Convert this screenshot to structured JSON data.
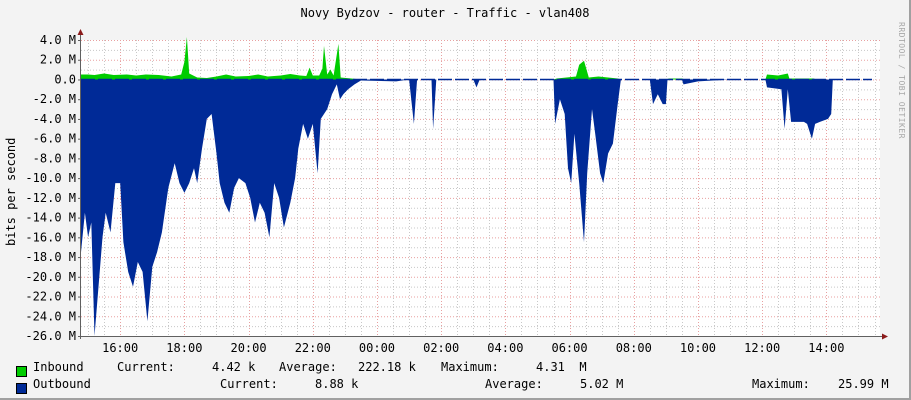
{
  "title": "Novy Bydzov - router - Traffic - vlan408",
  "watermark": "RRDTOOL / TOBI OETIKER",
  "colors": {
    "background": "#f3f3f3",
    "plot_background": "#ffffff",
    "inbound": "#00cc00",
    "outbound": "#002a97",
    "grid_major": "#e8a0a0",
    "grid_minor": "#c8c8c8",
    "axis": "#606060",
    "arrow": "#8b1a1a"
  },
  "legend": {
    "inbound": {
      "label": "Inbound",
      "current_label": "Current:",
      "current": "4.42 k",
      "average_label": "Average:",
      "average": "222.18 k",
      "maximum_label": "Maximum:",
      "maximum": "4.31  M"
    },
    "outbound": {
      "label": "Outbound",
      "current_label": "Current:",
      "current": "8.88 k",
      "average_label": "Average:",
      "average": "5.02 M",
      "maximum_label": "Maximum:",
      "maximum": "25.99 M"
    }
  },
  "chart_data": {
    "type": "area",
    "title": "Novy Bydzov - router - Traffic - vlan408",
    "xlabel": "",
    "ylabel": "bits per second",
    "ylim": [
      -26000000,
      4000000
    ],
    "yticks": [
      "4.0 M",
      "2.0 M",
      "0.0",
      "-2.0 M",
      "-4.0 M",
      "-6.0 M",
      "-8.0 M",
      "-10.0 M",
      "-12.0 M",
      "-14.0 M",
      "-16.0 M",
      "-18.0 M",
      "-20.0 M",
      "-22.0 M",
      "-24.0 M",
      "-26.0 M"
    ],
    "ytick_values": [
      4,
      2,
      0,
      -2,
      -4,
      -6,
      -8,
      -10,
      -12,
      -14,
      -16,
      -18,
      -20,
      -22,
      -24,
      -26
    ],
    "xticks": [
      "16:00",
      "18:00",
      "20:00",
      "22:00",
      "00:00",
      "02:00",
      "04:00",
      "06:00",
      "08:00",
      "10:00",
      "12:00",
      "14:00"
    ],
    "x_start_hour": 14.78,
    "grid": true,
    "legend_position": "bottom",
    "units": "M bits/s, x in hours since 14:47 (x values are hour offsets from 00:00 of first day)",
    "series": [
      {
        "name": "Inbound",
        "color": "#00cc00",
        "points": [
          [
            14.78,
            0.5
          ],
          [
            15.0,
            0.5
          ],
          [
            15.2,
            0.45
          ],
          [
            15.5,
            0.6
          ],
          [
            15.8,
            0.45
          ],
          [
            16.2,
            0.5
          ],
          [
            16.5,
            0.4
          ],
          [
            16.8,
            0.5
          ],
          [
            17.2,
            0.45
          ],
          [
            17.6,
            0.3
          ],
          [
            17.9,
            0.5
          ],
          [
            18.0,
            1.8
          ],
          [
            18.08,
            4.3
          ],
          [
            18.15,
            0.6
          ],
          [
            18.4,
            0.2
          ],
          [
            18.7,
            0.15
          ],
          [
            19.0,
            0.3
          ],
          [
            19.3,
            0.5
          ],
          [
            19.6,
            0.3
          ],
          [
            20.0,
            0.35
          ],
          [
            20.3,
            0.5
          ],
          [
            20.6,
            0.3
          ],
          [
            21.0,
            0.4
          ],
          [
            21.3,
            0.55
          ],
          [
            21.6,
            0.4
          ],
          [
            21.8,
            0.35
          ],
          [
            21.9,
            1.2
          ],
          [
            22.0,
            0.4
          ],
          [
            22.2,
            0.4
          ],
          [
            22.3,
            1.1
          ],
          [
            22.35,
            3.4
          ],
          [
            22.45,
            0.5
          ],
          [
            22.55,
            1.0
          ],
          [
            22.65,
            0.4
          ],
          [
            22.8,
            3.6
          ],
          [
            22.87,
            0.2
          ],
          [
            23.2,
            0.1
          ],
          [
            23.5,
            0
          ],
          [
            29.5,
            0
          ],
          [
            29.6,
            0.1
          ],
          [
            29.9,
            0.2
          ],
          [
            30.2,
            0.3
          ],
          [
            30.3,
            1.5
          ],
          [
            30.45,
            1.9
          ],
          [
            30.6,
            0.2
          ],
          [
            30.9,
            0.3
          ],
          [
            31.2,
            0.2
          ],
          [
            31.5,
            0.1
          ],
          [
            31.6,
            0
          ],
          [
            33.0,
            0
          ],
          [
            33.1,
            0.1
          ],
          [
            33.5,
            0.1
          ],
          [
            33.6,
            0
          ],
          [
            36.1,
            0
          ],
          [
            36.15,
            0.5
          ],
          [
            36.5,
            0.4
          ],
          [
            36.8,
            0.6
          ],
          [
            36.85,
            0.1
          ],
          [
            37.3,
            0.1
          ],
          [
            37.6,
            0.1
          ],
          [
            37.7,
            0
          ],
          [
            38.8,
            0
          ]
        ]
      },
      {
        "name": "Outbound",
        "color": "#002a97",
        "points": [
          [
            14.78,
            -17.5
          ],
          [
            14.9,
            -13.5
          ],
          [
            15.0,
            -16.0
          ],
          [
            15.1,
            -14.5
          ],
          [
            15.2,
            -26.0
          ],
          [
            15.3,
            -22.0
          ],
          [
            15.45,
            -16.0
          ],
          [
            15.55,
            -13.5
          ],
          [
            15.7,
            -15.5
          ],
          [
            15.85,
            -10.5
          ],
          [
            16.0,
            -10.5
          ],
          [
            16.1,
            -16.5
          ],
          [
            16.25,
            -19.5
          ],
          [
            16.4,
            -21.0
          ],
          [
            16.55,
            -18.5
          ],
          [
            16.7,
            -19.5
          ],
          [
            16.85,
            -24.5
          ],
          [
            17.0,
            -19.0
          ],
          [
            17.15,
            -17.5
          ],
          [
            17.3,
            -15.5
          ],
          [
            17.5,
            -11.0
          ],
          [
            17.7,
            -8.5
          ],
          [
            17.85,
            -10.5
          ],
          [
            18.0,
            -11.5
          ],
          [
            18.15,
            -10.5
          ],
          [
            18.3,
            -9.0
          ],
          [
            18.4,
            -10.5
          ],
          [
            18.55,
            -7.0
          ],
          [
            18.7,
            -4.0
          ],
          [
            18.85,
            -3.5
          ],
          [
            19.0,
            -7.5
          ],
          [
            19.1,
            -10.5
          ],
          [
            19.25,
            -12.5
          ],
          [
            19.4,
            -13.5
          ],
          [
            19.55,
            -11.0
          ],
          [
            19.7,
            -10.0
          ],
          [
            19.9,
            -10.5
          ],
          [
            20.05,
            -12.0
          ],
          [
            20.2,
            -14.5
          ],
          [
            20.35,
            -12.5
          ],
          [
            20.5,
            -13.5
          ],
          [
            20.65,
            -16.0
          ],
          [
            20.8,
            -10.5
          ],
          [
            20.95,
            -12.0
          ],
          [
            21.1,
            -15.0
          ],
          [
            21.3,
            -12.5
          ],
          [
            21.45,
            -10.0
          ],
          [
            21.55,
            -7.0
          ],
          [
            21.7,
            -4.5
          ],
          [
            21.85,
            -6.0
          ],
          [
            22.0,
            -4.5
          ],
          [
            22.15,
            -9.5
          ],
          [
            22.25,
            -4.0
          ],
          [
            22.45,
            -3.0
          ],
          [
            22.6,
            -1.5
          ],
          [
            22.75,
            -0.5
          ],
          [
            22.85,
            -2.0
          ],
          [
            22.95,
            -1.5
          ],
          [
            23.1,
            -1.0
          ],
          [
            23.3,
            -0.5
          ],
          [
            23.5,
            -0.1
          ],
          [
            24.6,
            -0.2
          ],
          [
            25.0,
            0
          ],
          [
            25.15,
            -4.5
          ],
          [
            25.25,
            0
          ],
          [
            25.7,
            0
          ],
          [
            25.75,
            -5.0
          ],
          [
            25.85,
            0
          ],
          [
            27.0,
            0
          ],
          [
            27.1,
            -0.8
          ],
          [
            27.2,
            0
          ],
          [
            29.5,
            0
          ],
          [
            29.55,
            -4.5
          ],
          [
            29.7,
            -2.0
          ],
          [
            29.85,
            -3.5
          ],
          [
            29.95,
            -9.0
          ],
          [
            30.05,
            -10.5
          ],
          [
            30.15,
            -5.5
          ],
          [
            30.3,
            -10.5
          ],
          [
            30.45,
            -16.5
          ],
          [
            30.55,
            -9.5
          ],
          [
            30.7,
            -3.0
          ],
          [
            30.8,
            -5.5
          ],
          [
            30.95,
            -9.5
          ],
          [
            31.05,
            -10.5
          ],
          [
            31.2,
            -7.5
          ],
          [
            31.35,
            -6.5
          ],
          [
            31.5,
            -2.5
          ],
          [
            31.6,
            0
          ],
          [
            32.5,
            0
          ],
          [
            32.6,
            -2.5
          ],
          [
            32.75,
            -1.5
          ],
          [
            32.9,
            -2.5
          ],
          [
            33.0,
            -2.5
          ],
          [
            33.05,
            0
          ],
          [
            33.5,
            0
          ],
          [
            33.55,
            -0.5
          ],
          [
            34.0,
            -0.2
          ],
          [
            35.0,
            0
          ],
          [
            36.1,
            0
          ],
          [
            36.15,
            -0.8
          ],
          [
            36.6,
            -1.0
          ],
          [
            36.7,
            -5.0
          ],
          [
            36.8,
            -1.0
          ],
          [
            36.9,
            -4.3
          ],
          [
            37.3,
            -4.3
          ],
          [
            37.4,
            -4.5
          ],
          [
            37.55,
            -6.0
          ],
          [
            37.65,
            -4.5
          ],
          [
            37.8,
            -4.3
          ],
          [
            38.05,
            -4.0
          ],
          [
            38.15,
            -3.5
          ],
          [
            38.2,
            0
          ],
          [
            38.8,
            0
          ]
        ]
      }
    ]
  }
}
